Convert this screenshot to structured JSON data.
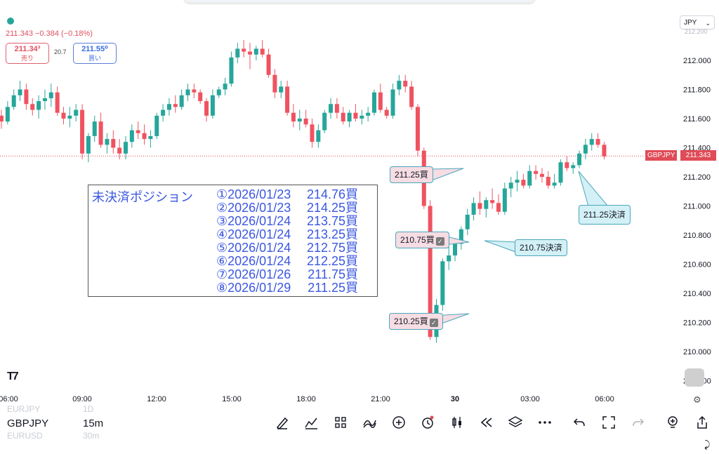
{
  "header": {
    "quote_line": "211.343 −0.384 (−0.18%)",
    "sell_price": "211.34³",
    "sell_label": "売り",
    "spread": "20.7",
    "buy_price": "211.55⁰",
    "buy_label": "買い",
    "currency": "JPY"
  },
  "colors": {
    "up": "#26a69a",
    "down": "#ef5360",
    "accent_blue": "#3b57e0",
    "price_line": "#e04b57"
  },
  "price_axis": {
    "ticks": [
      "212.000",
      "211.800",
      "211.600",
      "211.400",
      "211.200",
      "211.000",
      "210.800",
      "210.600",
      "210.400",
      "210.200",
      "210.000",
      "209.800"
    ],
    "top_clip": "212.200",
    "current_symbol": "GBPJPY",
    "current_price": "211.343"
  },
  "time_axis": [
    "06:00",
    "09:00",
    "12:00",
    "15:00",
    "18:00",
    "21:00",
    "30",
    "03:00",
    "06:00"
  ],
  "positions": {
    "title": "未決済ポジション",
    "rows": [
      {
        "date": "①2026/01/23",
        "price": "214.76買"
      },
      {
        "date": "②2026/01/23",
        "price": "214.25買"
      },
      {
        "date": "③2026/01/24",
        "price": "213.75買"
      },
      {
        "date": "④2026/01/24",
        "price": "213.25買"
      },
      {
        "date": "⑤2026/01/24",
        "price": "212.75買"
      },
      {
        "date": "⑥2026/01/24",
        "price": "212.25買"
      },
      {
        "date": "⑦2026/01/26",
        "price": "211.75買"
      },
      {
        "date": "⑧2026/01/29",
        "price": "211.25買"
      }
    ]
  },
  "notes": {
    "buy_1": "211.25買",
    "buy_2": "210.75買",
    "buy_3": "210.25買",
    "settle_1": "210.75決済",
    "settle_2": "211.25決済"
  },
  "bottom": {
    "ghost_symbol_top": "EURJPY",
    "ghost_tf_top": "1D",
    "symbol": "GBPJPY",
    "timeframe": "15m",
    "ghost_symbol_bottom": "EURUSD",
    "ghost_tf_bottom": "30m",
    "icons": [
      "pen-icon",
      "indicators-icon",
      "layout-icon",
      "drawing-tools-icon",
      "add-icon",
      "alert-icon",
      "candle-type-icon",
      "replay-icon",
      "layers-icon",
      "more-icon",
      "undo-icon",
      "fullscreen-icon",
      "redo-icon",
      "ideas-icon",
      "share-icon"
    ]
  },
  "chart_data": {
    "type": "candlestick",
    "symbol": "GBPJPY",
    "timeframe": "15m",
    "ylim": [
      209.75,
      212.2
    ],
    "ohlc": [
      [
        211.62,
        211.66,
        211.53,
        211.58
      ],
      [
        211.58,
        211.72,
        211.56,
        211.68
      ],
      [
        211.68,
        211.8,
        211.66,
        211.76
      ],
      [
        211.76,
        211.86,
        211.72,
        211.8
      ],
      [
        211.8,
        211.84,
        211.66,
        211.7
      ],
      [
        211.7,
        211.74,
        211.62,
        211.66
      ],
      [
        211.66,
        211.76,
        211.6,
        211.72
      ],
      [
        211.72,
        211.8,
        211.66,
        211.74
      ],
      [
        211.74,
        211.84,
        211.68,
        211.78
      ],
      [
        211.78,
        211.82,
        211.62,
        211.64
      ],
      [
        211.64,
        211.68,
        211.56,
        211.6
      ],
      [
        211.6,
        211.68,
        211.54,
        211.62
      ],
      [
        211.62,
        211.7,
        211.58,
        211.66
      ],
      [
        211.66,
        211.7,
        211.32,
        211.36
      ],
      [
        211.36,
        211.5,
        211.3,
        211.48
      ],
      [
        211.48,
        211.62,
        211.44,
        211.58
      ],
      [
        211.58,
        211.64,
        211.4,
        211.42
      ],
      [
        211.42,
        211.5,
        211.36,
        211.46
      ],
      [
        211.46,
        211.52,
        211.36,
        211.4
      ],
      [
        211.4,
        211.46,
        211.32,
        211.36
      ],
      [
        211.36,
        211.48,
        211.32,
        211.44
      ],
      [
        211.44,
        211.56,
        211.4,
        211.52
      ],
      [
        211.52,
        211.58,
        211.46,
        211.5
      ],
      [
        211.5,
        211.56,
        211.42,
        211.46
      ],
      [
        211.46,
        211.52,
        211.4,
        211.48
      ],
      [
        211.48,
        211.64,
        211.46,
        211.62
      ],
      [
        211.62,
        211.7,
        211.58,
        211.66
      ],
      [
        211.66,
        211.74,
        211.62,
        211.7
      ],
      [
        211.7,
        211.76,
        211.64,
        211.68
      ],
      [
        211.68,
        211.8,
        211.66,
        211.76
      ],
      [
        211.76,
        211.84,
        211.72,
        211.8
      ],
      [
        211.8,
        211.84,
        211.74,
        211.78
      ],
      [
        211.78,
        211.8,
        211.7,
        211.72
      ],
      [
        211.72,
        211.74,
        211.58,
        211.62
      ],
      [
        211.62,
        211.8,
        211.6,
        211.76
      ],
      [
        211.76,
        211.82,
        211.74,
        211.8
      ],
      [
        211.8,
        211.88,
        211.76,
        211.84
      ],
      [
        211.84,
        212.06,
        211.82,
        212.02
      ],
      [
        212.02,
        212.12,
        211.98,
        212.08
      ],
      [
        212.08,
        212.14,
        212.02,
        212.06
      ],
      [
        212.06,
        212.12,
        211.94,
        212.04
      ],
      [
        212.04,
        212.1,
        212.0,
        212.08
      ],
      [
        212.08,
        212.14,
        212.02,
        212.04
      ],
      [
        212.04,
        212.08,
        211.88,
        211.9
      ],
      [
        211.9,
        211.94,
        211.74,
        211.78
      ],
      [
        211.78,
        211.86,
        211.74,
        211.82
      ],
      [
        211.82,
        211.86,
        211.62,
        211.64
      ],
      [
        211.64,
        211.7,
        211.54,
        211.58
      ],
      [
        211.58,
        211.66,
        211.52,
        211.6
      ],
      [
        211.6,
        211.66,
        211.54,
        211.56
      ],
      [
        211.56,
        211.6,
        211.4,
        211.44
      ],
      [
        211.44,
        211.56,
        211.4,
        211.52
      ],
      [
        211.52,
        211.66,
        211.5,
        211.64
      ],
      [
        211.64,
        211.74,
        211.6,
        211.7
      ],
      [
        211.7,
        211.74,
        211.6,
        211.64
      ],
      [
        211.64,
        211.68,
        211.56,
        211.58
      ],
      [
        211.58,
        211.66,
        211.54,
        211.64
      ],
      [
        211.64,
        211.7,
        211.58,
        211.6
      ],
      [
        211.6,
        211.66,
        211.56,
        211.62
      ],
      [
        211.62,
        211.68,
        211.58,
        211.64
      ],
      [
        211.64,
        211.8,
        211.62,
        211.78
      ],
      [
        211.78,
        211.84,
        211.64,
        211.66
      ],
      [
        211.66,
        211.68,
        211.6,
        211.62
      ],
      [
        211.62,
        211.84,
        211.6,
        211.8
      ],
      [
        211.8,
        211.9,
        211.76,
        211.86
      ],
      [
        211.86,
        211.9,
        211.78,
        211.82
      ],
      [
        211.82,
        211.86,
        211.66,
        211.68
      ],
      [
        211.68,
        211.7,
        211.34,
        211.38
      ],
      [
        211.38,
        211.4,
        210.98,
        211.0
      ],
      [
        211.0,
        211.04,
        210.08,
        210.1
      ],
      [
        210.1,
        210.36,
        210.06,
        210.32
      ],
      [
        210.32,
        210.64,
        210.28,
        210.62
      ],
      [
        210.62,
        210.72,
        210.56,
        210.66
      ],
      [
        210.66,
        210.78,
        210.62,
        210.74
      ],
      [
        210.74,
        210.86,
        210.7,
        210.84
      ],
      [
        210.84,
        210.98,
        210.8,
        210.94
      ],
      [
        210.94,
        211.06,
        210.9,
        211.02
      ],
      [
        211.02,
        211.1,
        210.94,
        210.98
      ],
      [
        210.98,
        211.06,
        210.92,
        211.04
      ],
      [
        211.04,
        211.12,
        210.98,
        211.02
      ],
      [
        211.02,
        211.08,
        210.94,
        210.96
      ],
      [
        210.96,
        211.16,
        210.94,
        211.12
      ],
      [
        211.12,
        211.2,
        211.06,
        211.16
      ],
      [
        211.16,
        211.24,
        211.1,
        211.18
      ],
      [
        211.18,
        211.22,
        211.12,
        211.14
      ],
      [
        211.14,
        211.28,
        211.12,
        211.24
      ],
      [
        211.24,
        211.28,
        211.18,
        211.22
      ],
      [
        211.22,
        211.26,
        211.16,
        211.2
      ],
      [
        211.2,
        211.24,
        211.12,
        211.14
      ],
      [
        211.14,
        211.22,
        211.12,
        211.16
      ],
      [
        211.16,
        211.32,
        211.14,
        211.3
      ],
      [
        211.3,
        211.34,
        211.24,
        211.26
      ],
      [
        211.26,
        211.3,
        211.22,
        211.28
      ],
      [
        211.28,
        211.38,
        211.26,
        211.36
      ],
      [
        211.36,
        211.46,
        211.32,
        211.42
      ],
      [
        211.42,
        211.5,
        211.38,
        211.46
      ],
      [
        211.46,
        211.5,
        211.4,
        211.42
      ],
      [
        211.42,
        211.44,
        211.32,
        211.34
      ]
    ],
    "current_price": 211.343,
    "ylabel": "",
    "xlabel": ""
  }
}
